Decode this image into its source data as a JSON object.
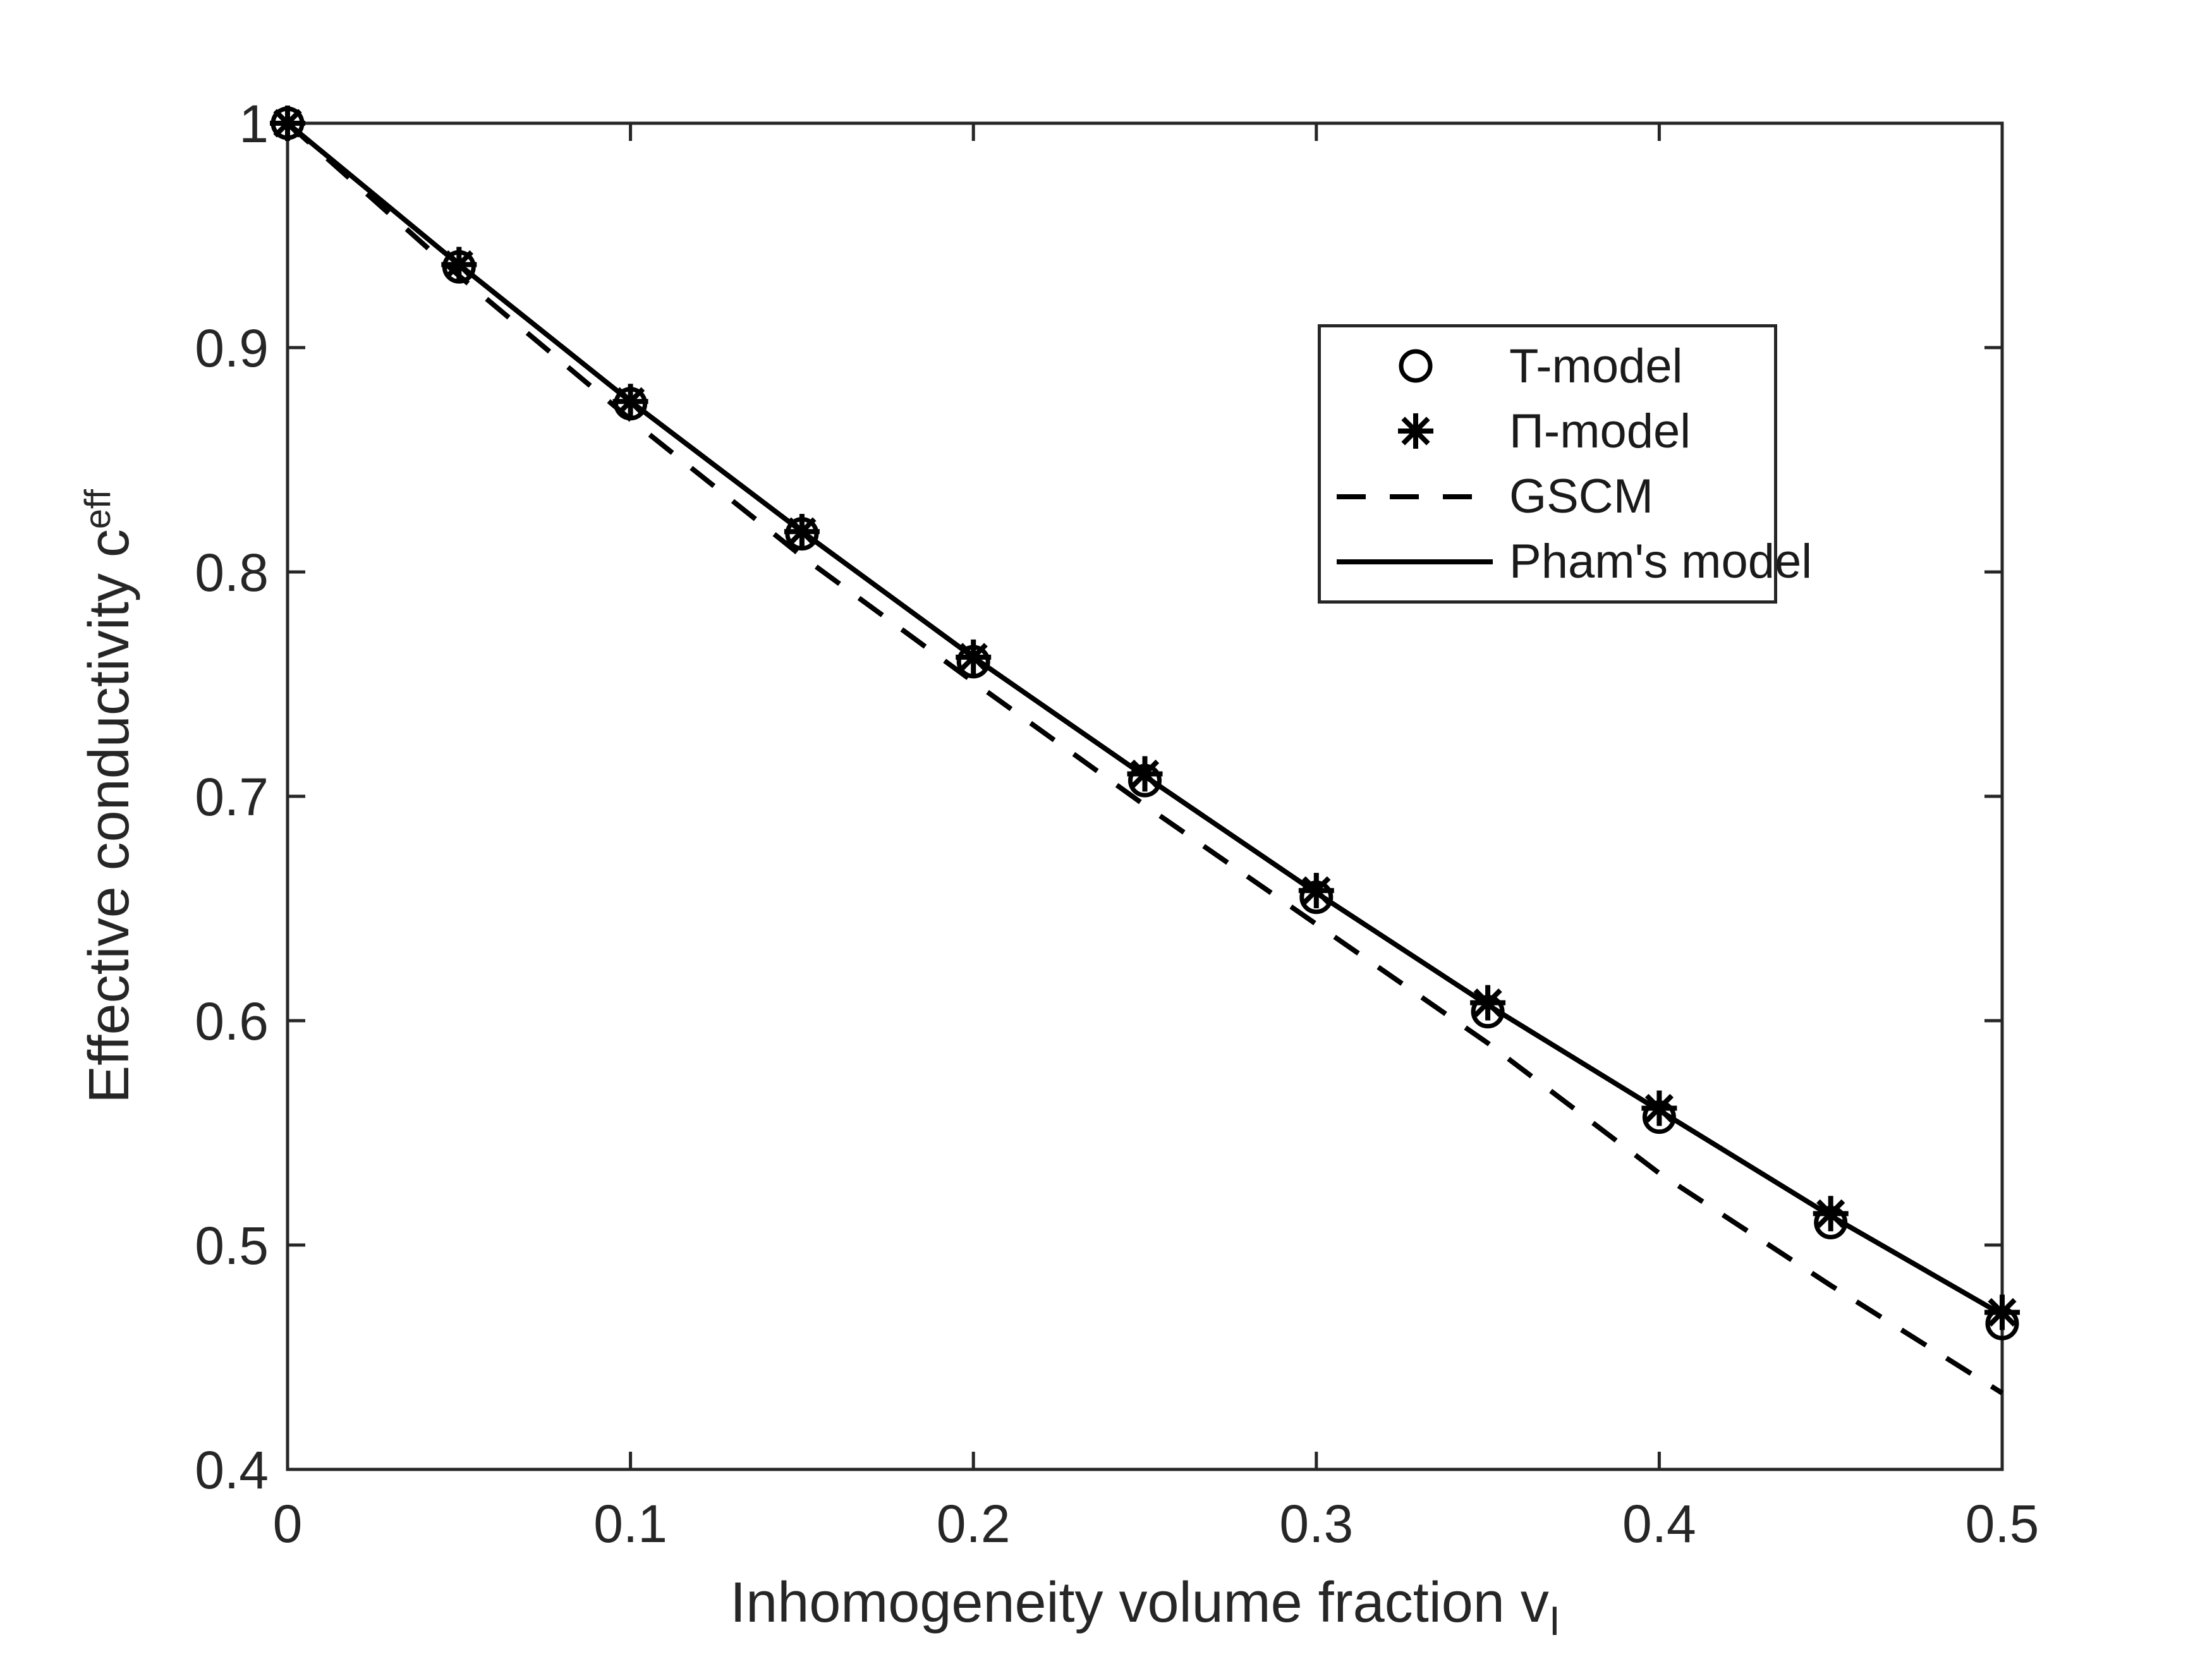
{
  "figure": {
    "background": "#ffffff",
    "axis_color": "#262626",
    "curve_color": "#000000"
  },
  "chart_data": {
    "type": "line",
    "title": "",
    "xlabel": "Inhomogeneity volume fraction v_I",
    "xlabel_main": "Inhomogeneity volume fraction v",
    "xlabel_subscript": "I",
    "ylabel": "Effective conductivity c^eff",
    "ylabel_main": "Effective conductivity c",
    "ylabel_superscript": "eff",
    "xlim": [
      0,
      0.5
    ],
    "ylim": [
      0.4,
      1.0
    ],
    "grid": false,
    "legend_position": "northeast",
    "x_ticks": {
      "values": [
        0,
        0.1,
        0.2,
        0.3,
        0.4,
        0.5
      ],
      "labels": [
        "0",
        "0.1",
        "0.2",
        "0.3",
        "0.4",
        "0.5"
      ]
    },
    "y_ticks": {
      "values": [
        0.4,
        0.5,
        0.6,
        0.7,
        0.8,
        0.9,
        1.0
      ],
      "labels": [
        "0.4",
        "0.5",
        "0.6",
        "0.7",
        "0.8",
        "0.9",
        "1"
      ]
    },
    "x": [
      0,
      0.05,
      0.1,
      0.15,
      0.2,
      0.25,
      0.3,
      0.35,
      0.4,
      0.45,
      0.5
    ],
    "series": [
      {
        "name": "T-model",
        "plot_style": "markers",
        "marker": "circle",
        "values": [
          1.0,
          0.936,
          0.875,
          0.817,
          0.76,
          0.707,
          0.655,
          0.604,
          0.557,
          0.51,
          0.465
        ]
      },
      {
        "name": "Π-model",
        "plot_style": "markers",
        "marker": "asterisk",
        "values": [
          1.0,
          0.937,
          0.876,
          0.818,
          0.762,
          0.71,
          0.658,
          0.608,
          0.561,
          0.514,
          0.47
        ]
      },
      {
        "name": "GSCM",
        "plot_style": "line-dashed",
        "values": [
          1.0,
          0.932,
          0.868,
          0.807,
          0.751,
          0.696,
          0.643,
          0.59,
          0.532,
          0.482,
          0.434
        ]
      },
      {
        "name": "Pham's model",
        "plot_style": "line-solid",
        "values": [
          1.0,
          0.937,
          0.876,
          0.818,
          0.762,
          0.709,
          0.657,
          0.607,
          0.56,
          0.513,
          0.469
        ]
      }
    ]
  }
}
